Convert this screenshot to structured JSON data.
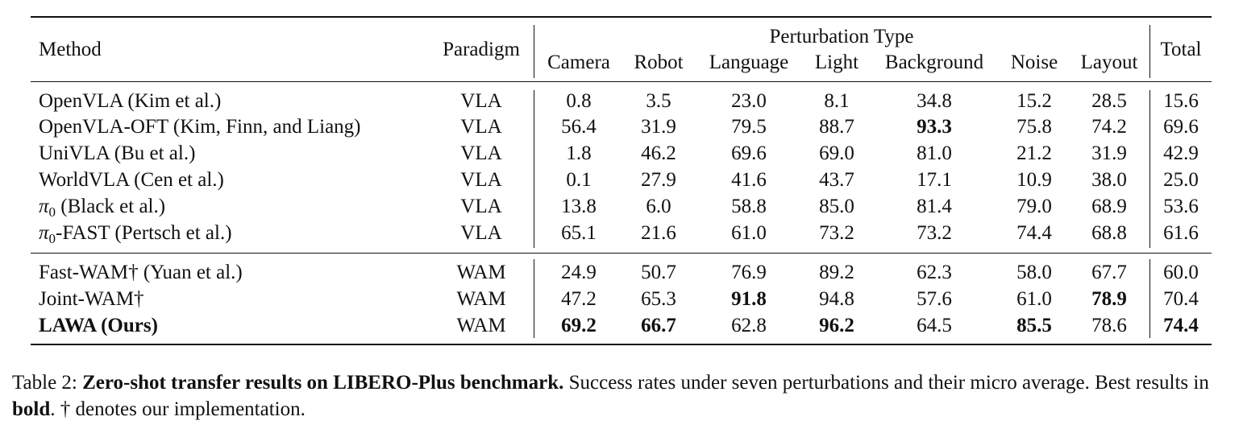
{
  "table": {
    "header": {
      "method": "Method",
      "paradigm": "Paradigm",
      "group": "Perturbation Type",
      "columns": [
        "Camera",
        "Robot",
        "Language",
        "Light",
        "Background",
        "Noise",
        "Layout"
      ],
      "total": "Total"
    },
    "rows": [
      {
        "method": "OpenVLA (Kim et al.)",
        "paradigm": "VLA",
        "values": [
          "0.8",
          "3.5",
          "23.0",
          "8.1",
          "34.8",
          "15.2",
          "28.5"
        ],
        "total": "15.6",
        "bold_cols": [],
        "bold_total": false,
        "bold_method": false
      },
      {
        "method": "OpenVLA-OFT (Kim, Finn, and Liang)",
        "paradigm": "VLA",
        "values": [
          "56.4",
          "31.9",
          "79.5",
          "88.7",
          "93.3",
          "75.8",
          "74.2"
        ],
        "total": "69.6",
        "bold_cols": [
          4
        ],
        "bold_total": false,
        "bold_method": false
      },
      {
        "method": "UniVLA (Bu et al.)",
        "paradigm": "VLA",
        "values": [
          "1.8",
          "46.2",
          "69.6",
          "69.0",
          "81.0",
          "21.2",
          "31.9"
        ],
        "total": "42.9",
        "bold_cols": [],
        "bold_total": false,
        "bold_method": false
      },
      {
        "method": "WorldVLA (Cen et al.)",
        "paradigm": "VLA",
        "values": [
          "0.1",
          "27.9",
          "41.6",
          "43.7",
          "17.1",
          "10.9",
          "38.0"
        ],
        "total": "25.0",
        "bold_cols": [],
        "bold_total": false,
        "bold_method": false
      },
      {
        "method_pi": "π",
        "method_sub": "0",
        "method": " (Black et al.)",
        "paradigm": "VLA",
        "values": [
          "13.8",
          "6.0",
          "58.8",
          "85.0",
          "81.4",
          "79.0",
          "68.9"
        ],
        "total": "53.6",
        "bold_cols": [],
        "bold_total": false,
        "bold_method": false
      },
      {
        "method_pi": "π",
        "method_sub": "0",
        "method": "-FAST (Pertsch et al.)",
        "paradigm": "VLA",
        "values": [
          "65.1",
          "21.6",
          "61.0",
          "73.2",
          "73.2",
          "74.4",
          "68.8"
        ],
        "total": "61.6",
        "bold_cols": [],
        "bold_total": false,
        "bold_method": false
      },
      {
        "method": "Fast-WAM† (Yuan et al.)",
        "paradigm": "WAM",
        "values": [
          "24.9",
          "50.7",
          "76.9",
          "89.2",
          "62.3",
          "58.0",
          "67.7"
        ],
        "total": "60.0",
        "bold_cols": [],
        "bold_total": false,
        "bold_method": false
      },
      {
        "method": "Joint-WAM†",
        "paradigm": "WAM",
        "values": [
          "47.2",
          "65.3",
          "91.8",
          "94.8",
          "57.6",
          "61.0",
          "78.9"
        ],
        "total": "70.4",
        "bold_cols": [
          2,
          6
        ],
        "bold_total": false,
        "bold_method": false
      },
      {
        "method": "LAWA (Ours)",
        "paradigm": "WAM",
        "values": [
          "69.2",
          "66.7",
          "62.8",
          "96.2",
          "64.5",
          "85.5",
          "78.6"
        ],
        "total": "74.4",
        "bold_cols": [
          0,
          1,
          3,
          5
        ],
        "bold_total": true,
        "bold_method": true
      }
    ]
  },
  "caption": {
    "label": "Table 2: ",
    "bold_title": "Zero-shot transfer results on LIBERO-Plus benchmark.",
    "text1": " Success rates under seven perturbations and their micro average. Best results in ",
    "bold_word": "bold",
    "text2": ". † denotes our implementation."
  }
}
